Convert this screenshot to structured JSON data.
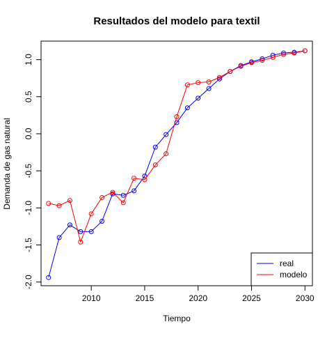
{
  "chart_data": {
    "type": "line",
    "title": "Resultados del modelo para textil",
    "xlabel": "Tiempo",
    "ylabel": "Demanda de gas natural",
    "xlim": [
      2005.3,
      2030.7
    ],
    "ylim": [
      -2.05,
      1.25
    ],
    "x_ticks": [
      2010,
      2015,
      2020,
      2025,
      2030
    ],
    "y_ticks": [
      -2.0,
      -1.5,
      -1.0,
      -0.5,
      0.0,
      0.5,
      1.0
    ],
    "y_tick_labels": [
      "-2.0",
      "-1.5",
      "-1.0",
      "-0.5",
      "0.0",
      "0.5",
      "1.0"
    ],
    "grid": false,
    "legend_position": "bottom-right",
    "x": [
      2006,
      2007,
      2008,
      2009,
      2010,
      2011,
      2012,
      2013,
      2014,
      2015,
      2016,
      2017,
      2018,
      2019,
      2020,
      2021,
      2022,
      2023,
      2024,
      2025,
      2026,
      2027,
      2028,
      2029,
      2030
    ],
    "series": [
      {
        "name": "real",
        "color": "#0000ff",
        "values": [
          -1.94,
          -1.4,
          -1.23,
          -1.32,
          -1.32,
          -1.18,
          -0.81,
          -0.83,
          -0.77,
          -0.57,
          -0.18,
          -0.01,
          0.15,
          0.35,
          0.48,
          0.61,
          0.74,
          0.84,
          0.92,
          0.97,
          1.01,
          1.06,
          1.09,
          1.1,
          1.12
        ]
      },
      {
        "name": "modelo",
        "color": "#ff0000",
        "values": [
          -0.94,
          -0.97,
          -0.9,
          -1.46,
          -1.08,
          -0.86,
          -0.79,
          -0.93,
          -0.6,
          -0.62,
          -0.42,
          -0.27,
          0.23,
          0.66,
          0.69,
          0.7,
          0.76,
          0.84,
          0.91,
          0.96,
          0.99,
          1.03,
          1.07,
          1.09,
          1.12
        ]
      }
    ]
  }
}
